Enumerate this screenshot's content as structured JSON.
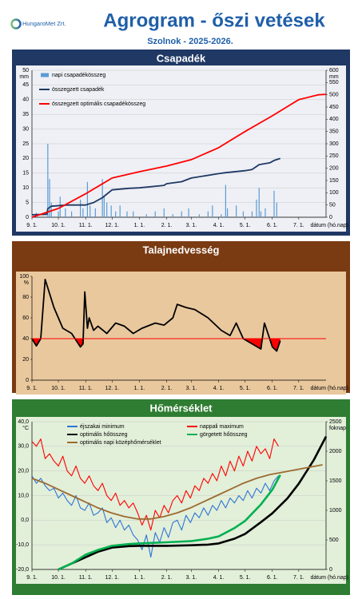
{
  "header": {
    "logo": "HungaroMet Zrt.",
    "title": "Agrogram - őszi vetések",
    "subtitle": "Szolnok - 2025-2026."
  },
  "chart_data": [
    {
      "type": "combo",
      "title": "Csapadék",
      "panel_color": "#1f3864",
      "plot_color": "#eef0f5",
      "legend": "top-left",
      "grid": true,
      "xlabel": "dátum (hó.nap)",
      "ylabel": "mm",
      "y2label": "mm",
      "xlim": [
        0,
        334
      ],
      "xticks": [
        {
          "value": 0,
          "label": "9. 1."
        },
        {
          "value": 30,
          "label": "10. 1."
        },
        {
          "value": 61,
          "label": "11. 1."
        },
        {
          "value": 91,
          "label": "12. 1."
        },
        {
          "value": 122,
          "label": "1. 1."
        },
        {
          "value": 153,
          "label": "2. 1."
        },
        {
          "value": 181,
          "label": "3. 1."
        },
        {
          "value": 212,
          "label": "4. 1."
        },
        {
          "value": 242,
          "label": "5. 1."
        },
        {
          "value": 273,
          "label": "6. 1."
        },
        {
          "value": 303,
          "label": "7. 1."
        }
      ],
      "ylim": [
        0,
        50
      ],
      "yticks": [
        0,
        5,
        10,
        15,
        20,
        25,
        30,
        35,
        40,
        45,
        50
      ],
      "y2lim": [
        0,
        600
      ],
      "y2ticks": [
        0,
        50,
        100,
        150,
        200,
        250,
        300,
        350,
        400,
        450,
        500,
        550,
        600
      ],
      "series": [
        {
          "name": "napi csapadékösszeg",
          "type": "bar",
          "color": "#5b9bd5",
          "x": [
            0,
            5,
            18,
            20,
            22,
            30,
            32,
            38,
            45,
            55,
            58,
            63,
            66,
            72,
            80,
            82,
            85,
            90,
            95,
            100,
            108,
            115,
            130,
            140,
            150,
            160,
            170,
            178,
            190,
            200,
            205,
            215,
            220,
            222,
            232,
            240,
            250,
            255,
            258,
            260,
            265,
            275,
            278
          ],
          "values": [
            1,
            1.5,
            25,
            13,
            5,
            2,
            7,
            3,
            2,
            6,
            3,
            12,
            4,
            3,
            13,
            7,
            5,
            4,
            2,
            4,
            2,
            2,
            1,
            2,
            3,
            1,
            2,
            3,
            1,
            2,
            4,
            1,
            11,
            3,
            4,
            2,
            2,
            6,
            10,
            2,
            3,
            9,
            5
          ]
        },
        {
          "name": "összegzett csapadék",
          "type": "line",
          "axis": "y2",
          "color": "#1f3864",
          "x": [
            0,
            17,
            18,
            22,
            40,
            61,
            70,
            80,
            91,
            110,
            122,
            150,
            153,
            170,
            181,
            212,
            220,
            242,
            250,
            258,
            270,
            275,
            282
          ],
          "values": [
            10,
            12,
            35,
            45,
            50,
            50,
            60,
            80,
            112,
            118,
            120,
            130,
            137,
            145,
            160,
            178,
            182,
            190,
            195,
            215,
            222,
            232,
            240
          ]
        },
        {
          "name": "összegzett optimális csapadékösszeg",
          "type": "line",
          "axis": "y2",
          "color": "#ff0000",
          "x": [
            0,
            30,
            61,
            91,
            122,
            153,
            181,
            212,
            242,
            273,
            303,
            325,
            334
          ],
          "values": [
            0,
            36,
            96,
            160,
            186,
            209,
            235,
            284,
            350,
            414,
            480,
            500,
            502
          ]
        }
      ]
    },
    {
      "type": "line",
      "title": "Talajnedvesség",
      "panel_color": "#7a3b12",
      "plot_color": "#e9c89e",
      "grid": false,
      "xlabel": "dátum (hó.nap)",
      "ylabel": "%",
      "xlim": [
        0,
        334
      ],
      "xticks": [
        {
          "value": 0,
          "label": "9. 1."
        },
        {
          "value": 30,
          "label": "10. 1."
        },
        {
          "value": 61,
          "label": "11. 1."
        },
        {
          "value": 91,
          "label": "12. 1."
        },
        {
          "value": 122,
          "label": "1. 1."
        },
        {
          "value": 153,
          "label": "2. 1."
        },
        {
          "value": 181,
          "label": "3. 1."
        },
        {
          "value": 212,
          "label": "4. 1."
        },
        {
          "value": 242,
          "label": "5. 1."
        },
        {
          "value": 273,
          "label": "6. 1."
        },
        {
          "value": 303,
          "label": "7. 1."
        }
      ],
      "ylim": [
        0,
        100
      ],
      "yticks": [
        0,
        20,
        40,
        60,
        80,
        100
      ],
      "threshold": 40,
      "threshold_color": "#ff0000",
      "series": [
        {
          "type": "line",
          "color": "#000000",
          "x": [
            0,
            5,
            10,
            15,
            25,
            35,
            45,
            55,
            58,
            60,
            63,
            65,
            70,
            75,
            85,
            95,
            105,
            115,
            125,
            140,
            150,
            160,
            165,
            175,
            185,
            200,
            215,
            225,
            232,
            240,
            250,
            260,
            264,
            268,
            273,
            278,
            282
          ],
          "values": [
            40,
            33,
            40,
            97,
            70,
            50,
            45,
            32,
            35,
            85,
            50,
            60,
            48,
            52,
            45,
            55,
            52,
            45,
            50,
            55,
            53,
            60,
            73,
            70,
            68,
            60,
            48,
            43,
            55,
            40,
            35,
            30,
            55,
            45,
            32,
            28,
            38
          ]
        }
      ]
    },
    {
      "type": "line",
      "title": "Hőmérséklet",
      "panel_color": "#2e7d32",
      "plot_color": "#e2efd9",
      "legend": "top",
      "grid": true,
      "xlabel": "dátum (hó.nap)",
      "ylabel": "°C",
      "y2label": "foknap",
      "xlim": [
        0,
        334
      ],
      "xticks": [
        {
          "value": 0,
          "label": "9. 1."
        },
        {
          "value": 30,
          "label": "10. 1."
        },
        {
          "value": 61,
          "label": "11. 1."
        },
        {
          "value": 91,
          "label": "12. 1."
        },
        {
          "value": 122,
          "label": "1. 1."
        },
        {
          "value": 153,
          "label": "2. 1."
        },
        {
          "value": 181,
          "label": "3. 1."
        },
        {
          "value": 212,
          "label": "4. 1."
        },
        {
          "value": 242,
          "label": "5. 1."
        },
        {
          "value": 273,
          "label": "6. 1."
        },
        {
          "value": 303,
          "label": "7. 1."
        }
      ],
      "ylim": [
        -20,
        40
      ],
      "yticks": [
        {
          "value": -20,
          "label": "-20,0"
        },
        {
          "value": -10,
          "label": "-10,0"
        },
        {
          "value": 0,
          "label": "0,0"
        },
        {
          "value": 10,
          "label": "10,0"
        },
        {
          "value": 20,
          "label": "20,0"
        },
        {
          "value": 30,
          "label": "30,0"
        },
        {
          "value": 40,
          "label": "40,0"
        }
      ],
      "y2lim": [
        0,
        2500
      ],
      "y2ticks": [
        0,
        500,
        1000,
        1500,
        2000,
        2500
      ],
      "series": [
        {
          "name": "éjszakai minimum",
          "type": "line",
          "color": "#2e75d6",
          "x": [
            0,
            5,
            10,
            15,
            20,
            25,
            30,
            35,
            40,
            45,
            50,
            55,
            60,
            65,
            70,
            75,
            80,
            85,
            90,
            95,
            100,
            105,
            110,
            115,
            120,
            125,
            130,
            135,
            140,
            145,
            150,
            155,
            160,
            165,
            170,
            175,
            180,
            185,
            190,
            195,
            200,
            205,
            210,
            215,
            220,
            225,
            230,
            235,
            240,
            245,
            250,
            255,
            260,
            265,
            270,
            275,
            280
          ],
          "values": [
            18,
            15,
            17,
            14,
            12,
            13,
            9,
            11,
            8,
            6,
            10,
            5,
            4,
            7,
            2,
            3,
            5,
            -1,
            1,
            -3,
            0,
            -4,
            -2,
            -6,
            -8,
            -12,
            -6,
            -15,
            -5,
            -9,
            -3,
            -7,
            -1,
            0,
            -4,
            2,
            -1,
            3,
            1,
            5,
            2,
            6,
            4,
            8,
            5,
            9,
            7,
            10,
            8,
            12,
            9,
            13,
            11,
            15,
            12,
            16,
            18
          ]
        },
        {
          "name": "nappali maximum",
          "type": "line",
          "color": "#ff0000",
          "x": [
            0,
            5,
            10,
            15,
            20,
            25,
            30,
            35,
            40,
            45,
            50,
            55,
            60,
            65,
            70,
            75,
            80,
            85,
            90,
            95,
            100,
            105,
            110,
            115,
            120,
            125,
            130,
            135,
            140,
            145,
            150,
            155,
            160,
            165,
            170,
            175,
            180,
            185,
            190,
            195,
            200,
            205,
            210,
            215,
            220,
            225,
            230,
            235,
            240,
            245,
            250,
            255,
            260,
            265,
            270,
            275,
            280
          ],
          "values": [
            32,
            30,
            33,
            25,
            27,
            24,
            22,
            26,
            20,
            18,
            22,
            17,
            15,
            18,
            14,
            12,
            15,
            10,
            8,
            11,
            6,
            8,
            5,
            7,
            3,
            -2,
            2,
            -4,
            4,
            1,
            6,
            3,
            8,
            10,
            7,
            12,
            9,
            14,
            12,
            17,
            15,
            19,
            16,
            22,
            18,
            24,
            20,
            26,
            22,
            28,
            24,
            30,
            27,
            29,
            25,
            33,
            30
          ]
        },
        {
          "name": "optimális hőösszeg",
          "type": "line",
          "axis": "y2",
          "color": "#000000",
          "x": [
            30,
            45,
            60,
            75,
            91,
            110,
            122,
            153,
            181,
            200,
            212,
            230,
            242,
            260,
            273,
            290,
            303,
            320,
            334
          ],
          "values": [
            0,
            100,
            200,
            300,
            370,
            395,
            400,
            400,
            410,
            420,
            440,
            520,
            600,
            800,
            950,
            1200,
            1450,
            1850,
            2250
          ]
        },
        {
          "name": "görgetett hőösszeg",
          "type": "line",
          "axis": "y2",
          "color": "#00b050",
          "x": [
            30,
            45,
            61,
            75,
            91,
            110,
            122,
            153,
            181,
            200,
            212,
            230,
            242,
            260,
            273,
            282
          ],
          "values": [
            0,
            100,
            250,
            330,
            400,
            430,
            440,
            460,
            480,
            520,
            560,
            700,
            820,
            1100,
            1350,
            1600
          ]
        },
        {
          "name": "optimális napi középhőmérséklet",
          "type": "line",
          "color": "#9c6b30",
          "x": [
            0,
            15,
            30,
            45,
            60,
            75,
            90,
            105,
            120,
            135,
            150,
            165,
            180,
            195,
            210,
            225,
            240,
            255,
            270,
            285,
            300,
            315,
            330
          ],
          "values": [
            17,
            15,
            12.5,
            10,
            7.5,
            5,
            3,
            1.5,
            0.5,
            0.5,
            1.5,
            3,
            5,
            7.5,
            10,
            12.5,
            15,
            17,
            18.5,
            19.5,
            20.5,
            21.5,
            22.5
          ]
        }
      ]
    }
  ]
}
